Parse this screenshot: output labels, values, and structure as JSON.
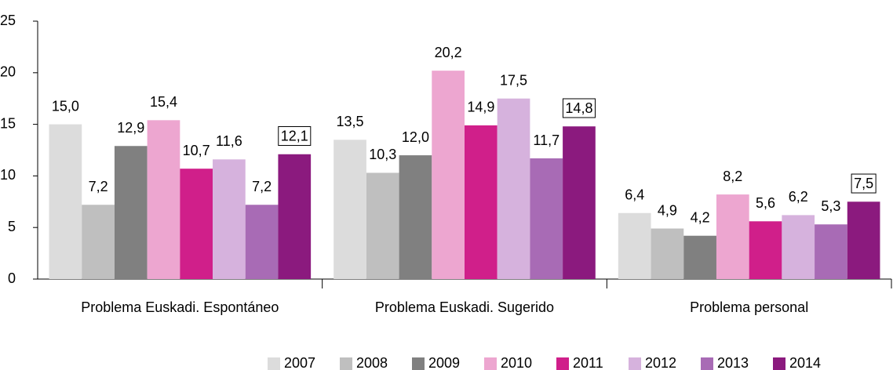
{
  "chart_data": {
    "type": "bar",
    "categories": [
      "Problema Euskadi. Espontáneo",
      "Problema Euskadi. Sugerido",
      "Problema personal"
    ],
    "series": [
      {
        "name": "2007",
        "color": "#dcdcdc",
        "values": [
          15.0,
          13.5,
          6.4
        ],
        "value_labels": [
          "15,0",
          "13,5",
          "6,4"
        ]
      },
      {
        "name": "2008",
        "color": "#bfbfbf",
        "values": [
          7.2,
          10.3,
          4.9
        ],
        "value_labels": [
          "7,2",
          "10,3",
          "4,9"
        ]
      },
      {
        "name": "2009",
        "color": "#808080",
        "values": [
          12.9,
          12.0,
          4.2
        ],
        "value_labels": [
          "12,9",
          "12,0",
          "4,2"
        ]
      },
      {
        "name": "2010",
        "color": "#eda6d0",
        "values": [
          15.4,
          20.2,
          8.2
        ],
        "value_labels": [
          "15,4",
          "20,2",
          "8,2"
        ]
      },
      {
        "name": "2011",
        "color": "#d01f8a",
        "values": [
          10.7,
          14.9,
          5.6
        ],
        "value_labels": [
          "10,7",
          "14,9",
          "5,6"
        ]
      },
      {
        "name": "2012",
        "color": "#d6b2dd",
        "values": [
          11.6,
          17.5,
          6.2
        ],
        "value_labels": [
          "11,6",
          "17,5",
          "6,2"
        ]
      },
      {
        "name": "2013",
        "color": "#a86bb5",
        "values": [
          7.2,
          11.7,
          5.3
        ],
        "value_labels": [
          "7,2",
          "11,7",
          "5,3"
        ]
      },
      {
        "name": "2014",
        "color": "#8b1a7e",
        "values": [
          12.1,
          14.8,
          7.5
        ],
        "value_labels": [
          "12,1",
          "14,8",
          "7,5"
        ]
      }
    ],
    "ylim": [
      0,
      25
    ],
    "yticks": [
      0,
      5,
      10,
      15,
      20,
      25
    ],
    "grid": false,
    "legend": "bottom"
  }
}
